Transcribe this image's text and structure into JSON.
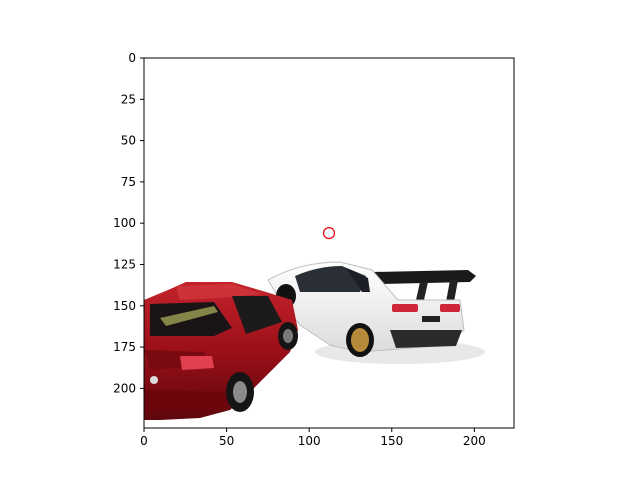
{
  "figure": {
    "image_description": "Two toy model cars: a dark red sedan in front-left and a white hatchback with large rear wing behind it, on white background",
    "x_range": [
      0,
      224
    ],
    "y_range": [
      224,
      0
    ],
    "x_ticks": [
      0,
      50,
      100,
      150,
      200
    ],
    "y_ticks": [
      0,
      25,
      50,
      75,
      100,
      125,
      150,
      175,
      200
    ],
    "marker": {
      "x": 112,
      "y": 106,
      "color": "#e8000b"
    }
  }
}
